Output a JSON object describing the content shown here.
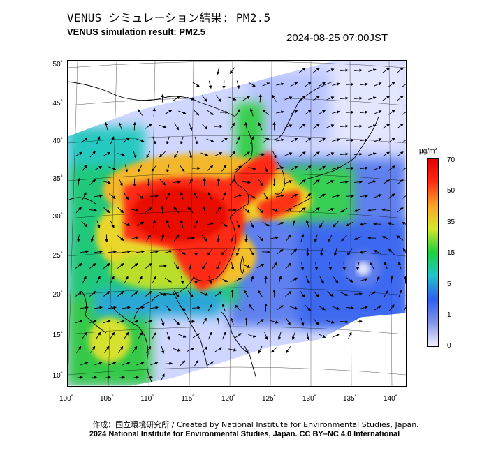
{
  "header": {
    "title_jp": "VENUS シミュレーション結果: PM2.5",
    "title_en": "VENUS simulation result: PM2.5",
    "timestamp": "2024-08-25 07:00JST"
  },
  "map": {
    "lat_ticks": [
      "50˚",
      "45˚",
      "40˚",
      "35˚",
      "30˚",
      "25˚",
      "20˚",
      "15˚",
      "10˚"
    ],
    "lon_ticks": [
      "100˚",
      "105˚",
      "110˚",
      "115˚",
      "120˚",
      "125˚",
      "130˚",
      "135˚",
      "140˚"
    ],
    "features": [
      "pm25-concentration-field",
      "wind-vector-arrows",
      "coastlines",
      "graticule",
      "typhoon-circulation"
    ]
  },
  "colorbar": {
    "unit_base": "μg/m",
    "unit_sup": "3",
    "ticks": [
      "70",
      "50",
      "35",
      "15",
      "5",
      "1",
      "0"
    ],
    "colors": [
      "#f2f2ff",
      "#7f92e8",
      "#2f5ff0",
      "#22c4c8",
      "#1ad23c",
      "#d8e62a",
      "#f7a52a",
      "#ff2a10",
      "#e00000"
    ]
  },
  "footer": {
    "credit_jp": "作成：国立環境研究所 / Created by National Institute for Environmental Studies, Japan.",
    "copyright": "2024 National Institute for Environmental Studies, Japan. CC BY–NC 4.0 International"
  }
}
